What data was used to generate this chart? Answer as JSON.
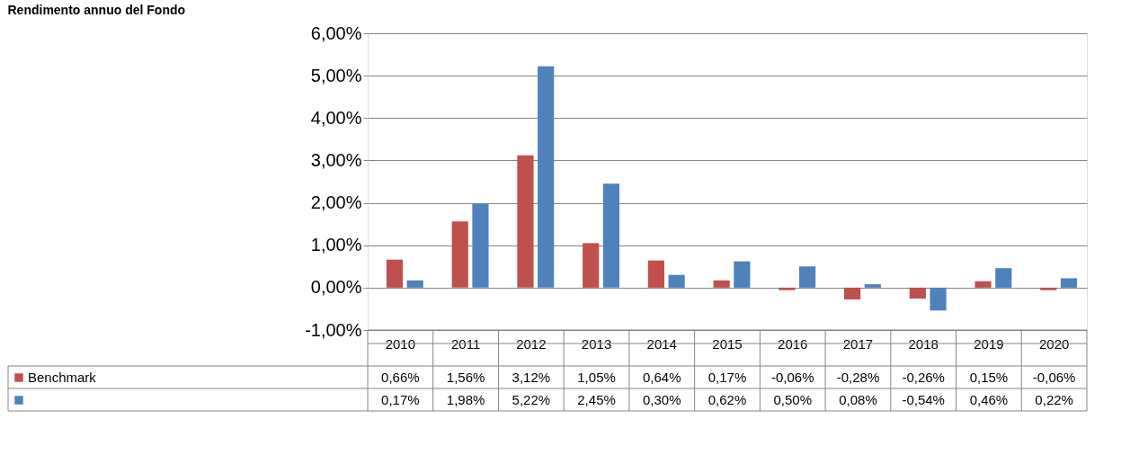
{
  "chart_data": {
    "type": "bar",
    "title": "Rendimento annuo del Fondo",
    "categories": [
      "2010",
      "2011",
      "2012",
      "2013",
      "2014",
      "2015",
      "2016",
      "2017",
      "2018",
      "2019",
      "2020"
    ],
    "series": [
      {
        "name": "Benchmark",
        "color": "#c0504d",
        "values": [
          0.66,
          1.56,
          3.12,
          1.05,
          0.64,
          0.17,
          -0.06,
          -0.28,
          -0.26,
          0.15,
          -0.06
        ],
        "value_labels": [
          "0,66%",
          "1,56%",
          "3,12%",
          "1,05%",
          "0,64%",
          "0,17%",
          "-0,06%",
          "-0,28%",
          "-0,26%",
          "0,15%",
          "-0,06%"
        ]
      },
      {
        "color": "#4f81bd",
        "values": [
          0.17,
          1.98,
          5.22,
          2.45,
          0.3,
          0.62,
          0.5,
          0.08,
          -0.54,
          0.46,
          0.22
        ],
        "value_labels": [
          "0,17%",
          "1,98%",
          "5,22%",
          "2,45%",
          "0,30%",
          "0,62%",
          "0,50%",
          "0,08%",
          "-0,54%",
          "0,46%",
          "0,22%"
        ]
      }
    ],
    "ylim": [
      -1,
      6
    ],
    "yticks": [
      {
        "value": -1,
        "label": "-1,00%"
      },
      {
        "value": 0,
        "label": "0,00%"
      },
      {
        "value": 1,
        "label": "1,00%"
      },
      {
        "value": 2,
        "label": "2,00%"
      },
      {
        "value": 3,
        "label": "3,00%"
      },
      {
        "value": 4,
        "label": "4,00%"
      },
      {
        "value": 5,
        "label": "5,00%"
      },
      {
        "value": 6,
        "label": "6,00%"
      }
    ],
    "grid": "y",
    "legend": "bottom left"
  }
}
